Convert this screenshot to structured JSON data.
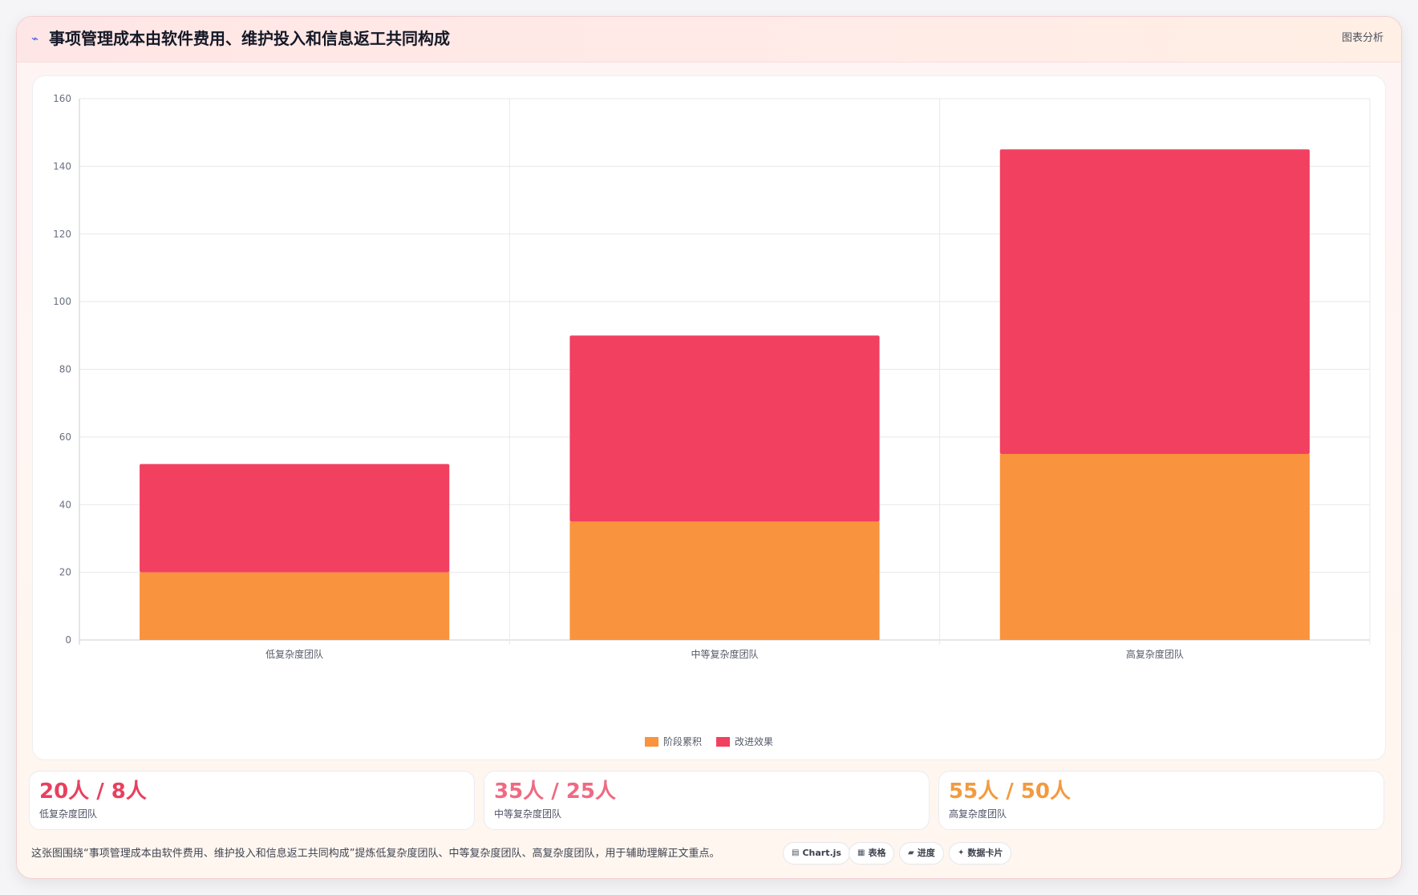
{
  "header": {
    "icon": "chart-line-icon",
    "title": "事项管理成本由软件费用、维护投入和信息返工共同构成",
    "action_label": "图表分析"
  },
  "chart_data": {
    "type": "bar",
    "stacked": true,
    "categories": [
      "低复杂度团队",
      "中等复杂度团队",
      "高复杂度团队"
    ],
    "series": [
      {
        "name": "阶段累积",
        "values": [
          20,
          35,
          55
        ],
        "color": "#f9933d"
      },
      {
        "name": "改进效果",
        "values": [
          32,
          55,
          90
        ],
        "color": "#f24061"
      }
    ],
    "ylim": [
      0,
      160
    ],
    "yticks": [
      0,
      20,
      40,
      60,
      80,
      100,
      120,
      140,
      160
    ],
    "grid": true,
    "legend": "bottom-center"
  },
  "stats": [
    {
      "value": "20人 / 8人",
      "label": "低复杂度团队",
      "color": "#e8405f"
    },
    {
      "value": "35人 / 25人",
      "label": "中等复杂度团队",
      "color": "#ef6a82"
    },
    {
      "value": "55人 / 50人",
      "label": "高复杂度团队",
      "color": "#f39a3f"
    }
  ],
  "footer": {
    "caption": "这张图围绕“事项管理成本由软件费用、维护投入和信息返工共同构成”提炼低复杂度团队、中等复杂度团队、高复杂度团队，用于辅助理解正文重点。",
    "pills": [
      {
        "icon": "chart-icon",
        "label": "Chart.js"
      },
      {
        "icon": "table-icon",
        "label": "表格"
      },
      {
        "icon": "progress-icon",
        "label": "进度"
      },
      {
        "icon": "card-icon",
        "label": "数据卡片"
      }
    ]
  }
}
